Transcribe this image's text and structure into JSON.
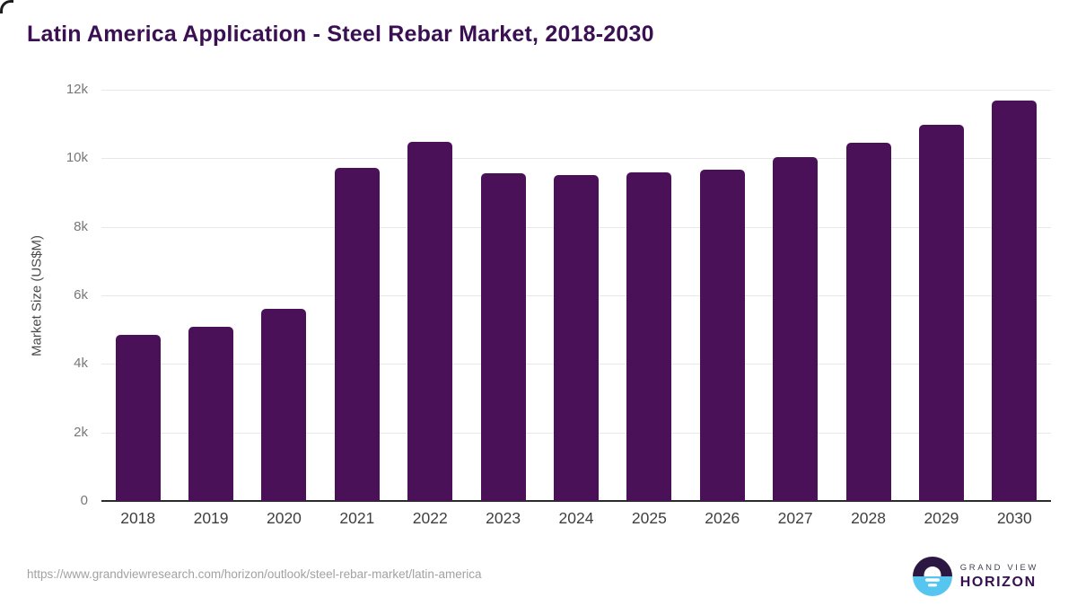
{
  "title": "Latin America Application - Steel Rebar Market, 2018-2030",
  "chart_data": {
    "type": "bar",
    "categories": [
      "2018",
      "2019",
      "2020",
      "2021",
      "2022",
      "2023",
      "2024",
      "2025",
      "2026",
      "2027",
      "2028",
      "2029",
      "2030"
    ],
    "values": [
      4850,
      5080,
      5600,
      9720,
      10490,
      9560,
      9510,
      9590,
      9670,
      10030,
      10450,
      10980,
      11690
    ],
    "title": "Latin America Application - Steel Rebar Market, 2018-2030",
    "xlabel": "",
    "ylabel": "Market Size (US$M)",
    "ylim": [
      0,
      12000
    ],
    "yticks": [
      {
        "value": 12000,
        "label": "12k"
      },
      {
        "value": 10000,
        "label": "10k"
      },
      {
        "value": 8000,
        "label": "8k"
      },
      {
        "value": 6000,
        "label": "6k"
      },
      {
        "value": 4000,
        "label": "4k"
      },
      {
        "value": 2000,
        "label": "2k"
      },
      {
        "value": 0,
        "label": "0"
      }
    ],
    "grid": true,
    "legend": false,
    "bar_color": "#4a1158"
  },
  "colors": {
    "title": "#3a1053",
    "bar": "#4a1158",
    "gridline": "#e8e8e8",
    "axis_line": "#2b2b2b",
    "x_label": "#3f3f3f",
    "y_label": "#777777",
    "footer_url": "#a2a2a2",
    "logo_dark": "#2b1742",
    "logo_blue": "#56c5f0"
  },
  "footer": {
    "source_url": "https://www.grandviewresearch.com/horizon/outlook/steel-rebar-market/latin-america"
  },
  "logo": {
    "brand_top": "GRAND VIEW",
    "brand_bottom": "HORIZON"
  }
}
